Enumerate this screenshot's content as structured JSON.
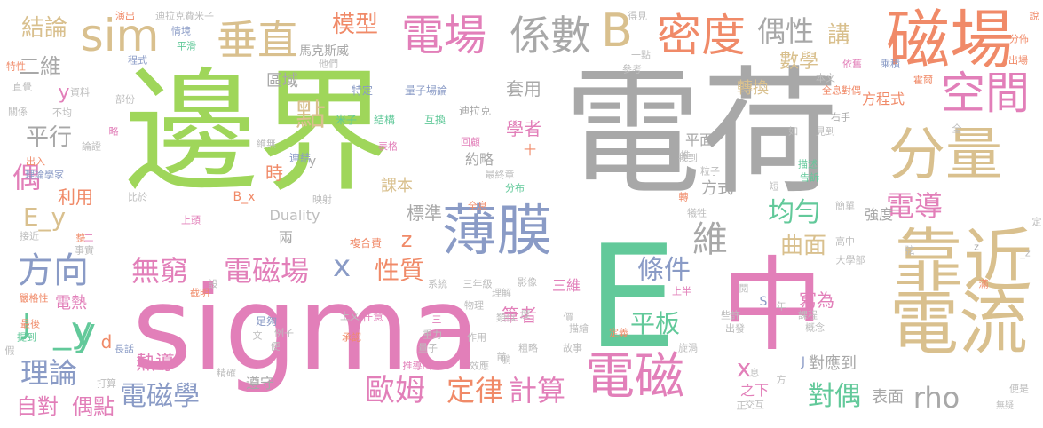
{
  "palette": {
    "green": "#9fd65a",
    "gray": "#a8a8a8",
    "pink": "#e27fb9",
    "teal": "#62c99a",
    "orange": "#f08a68",
    "tan": "#d9c08e",
    "slate": "#8a9bc6",
    "mid": "#bdbdbd"
  },
  "words": [
    {
      "text": "邊界",
      "color": "green"
    },
    {
      "text": "電荷",
      "color": "gray"
    },
    {
      "text": "sigma",
      "color": "pink"
    },
    {
      "text": "中",
      "color": "pink"
    },
    {
      "text": "E",
      "color": "teal"
    },
    {
      "text": "磁場",
      "color": "orange"
    },
    {
      "text": "靠近",
      "color": "tan"
    },
    {
      "text": "電流",
      "color": "tan"
    },
    {
      "text": "分量",
      "color": "tan"
    },
    {
      "text": "薄膜",
      "color": "slate"
    },
    {
      "text": "電磁",
      "color": "pink"
    },
    {
      "text": "電場",
      "color": "pink"
    },
    {
      "text": "係數",
      "color": "gray"
    },
    {
      "text": "B",
      "color": "tan"
    },
    {
      "text": "密度",
      "color": "orange"
    },
    {
      "text": "sim",
      "color": "tan"
    },
    {
      "text": "垂直",
      "color": "tan"
    },
    {
      "text": "方向",
      "color": "slate"
    },
    {
      "text": "無窮",
      "color": "pink"
    },
    {
      "text": "電磁場",
      "color": "pink"
    },
    {
      "text": "空間",
      "color": "pink"
    },
    {
      "text": "y",
      "color": "teal"
    },
    {
      "text": "x",
      "color": "slate"
    },
    {
      "text": "偶性",
      "color": "gray"
    },
    {
      "text": "講",
      "color": "tan"
    },
    {
      "text": "模型",
      "color": "orange"
    },
    {
      "text": "結論",
      "color": "tan"
    },
    {
      "text": "二維",
      "color": "gray"
    },
    {
      "text": "平行",
      "color": "gray"
    },
    {
      "text": "點",
      "color": "tan"
    },
    {
      "text": "偶",
      "color": "pink"
    },
    {
      "text": "E_y",
      "color": "tan"
    },
    {
      "text": "J",
      "color": "teal"
    },
    {
      "text": "_y",
      "color": "teal"
    },
    {
      "text": "理論",
      "color": "slate"
    },
    {
      "text": "自對",
      "color": "pink"
    },
    {
      "text": "偶點",
      "color": "pink"
    },
    {
      "text": "電磁學",
      "color": "slate"
    },
    {
      "text": "歐姆",
      "color": "pink"
    },
    {
      "text": "定律",
      "color": "orange"
    },
    {
      "text": "計算",
      "color": "pink"
    },
    {
      "text": "條件",
      "color": "slate"
    },
    {
      "text": "性質",
      "color": "orange"
    },
    {
      "text": "平板",
      "color": "teal"
    },
    {
      "text": "均勻",
      "color": "teal"
    },
    {
      "text": "曲面",
      "color": "tan"
    },
    {
      "text": "維",
      "color": "gray"
    },
    {
      "text": "電導",
      "color": "pink"
    },
    {
      "text": "對偶",
      "color": "teal"
    },
    {
      "text": "rho",
      "color": "gray"
    },
    {
      "text": "z",
      "color": "orange"
    },
    {
      "text": "x",
      "color": "pink"
    },
    {
      "text": "數學",
      "color": "tan"
    },
    {
      "text": "轉換",
      "color": "tan"
    },
    {
      "text": "方程式",
      "color": "orange"
    },
    {
      "text": "利用",
      "color": "orange"
    },
    {
      "text": "時",
      "color": "orange"
    },
    {
      "text": "套用",
      "color": "gray"
    },
    {
      "text": "學者",
      "color": "pink"
    },
    {
      "text": "標準",
      "color": "gray"
    },
    {
      "text": "約略",
      "color": "gray"
    },
    {
      "text": "區域",
      "color": "gray"
    },
    {
      "text": "馬克斯威",
      "color": "gray"
    },
    {
      "text": "熱導",
      "color": "pink"
    },
    {
      "text": "電熱",
      "color": "pink"
    },
    {
      "text": "筆者",
      "color": "pink"
    },
    {
      "text": "寫為",
      "color": "pink"
    },
    {
      "text": "對應到",
      "color": "gray"
    },
    {
      "text": "表面",
      "color": "gray"
    },
    {
      "text": "方式",
      "color": "gray"
    },
    {
      "text": "強度",
      "color": "gray"
    },
    {
      "text": "Duality",
      "color": "mid"
    },
    {
      "text": "課本",
      "color": "tan"
    },
    {
      "text": "平面",
      "color": "gray"
    },
    {
      "text": "三維",
      "color": "pink"
    },
    {
      "text": "兩",
      "color": "gray"
    },
    {
      "text": "遵守",
      "color": "gray"
    },
    {
      "text": "特定",
      "color": "slate"
    },
    {
      "text": "量子場論",
      "color": "slate"
    },
    {
      "text": "米子",
      "color": "teal"
    },
    {
      "text": "結構",
      "color": "teal"
    },
    {
      "text": "互換",
      "color": "teal"
    },
    {
      "text": "迪拉克",
      "color": "gray"
    },
    {
      "text": "演出",
      "color": "orange"
    },
    {
      "text": "迪拉克費米子",
      "color": "mid"
    },
    {
      "text": "得見",
      "color": "mid"
    },
    {
      "text": "說",
      "color": "orange"
    },
    {
      "text": "分佈",
      "color": "orange"
    },
    {
      "text": "出場",
      "color": "orange"
    },
    {
      "text": "霍爾",
      "color": "orange"
    },
    {
      "text": "乘積",
      "color": "slate"
    },
    {
      "text": "依舊",
      "color": "pink"
    },
    {
      "text": "本文",
      "color": "mid"
    },
    {
      "text": "全息對偶",
      "color": "orange"
    },
    {
      "text": "右手",
      "color": "gray"
    },
    {
      "text": "一如",
      "color": "mid"
    },
    {
      "text": "見到",
      "color": "mid"
    },
    {
      "text": "描述",
      "color": "teal"
    },
    {
      "text": "告訴",
      "color": "teal"
    },
    {
      "text": "大學部",
      "color": "mid"
    },
    {
      "text": "高中",
      "color": "mid"
    },
    {
      "text": "S",
      "color": "slate"
    },
    {
      "text": "年",
      "color": "mid"
    },
    {
      "text": "課程",
      "color": "mid"
    },
    {
      "text": "概念",
      "color": "mid"
    },
    {
      "text": "之下",
      "color": "pink"
    },
    {
      "text": "J",
      "color": "slate"
    },
    {
      "text": "便是",
      "color": "mid"
    },
    {
      "text": "無疑",
      "color": "mid"
    },
    {
      "text": "作用",
      "color": "mid"
    },
    {
      "text": "效應",
      "color": "mid"
    },
    {
      "text": "旋渦",
      "color": "mid"
    },
    {
      "text": "故事",
      "color": "mid"
    },
    {
      "text": "定義",
      "color": "orange"
    },
    {
      "text": "描繪",
      "color": "mid"
    },
    {
      "text": "粗略",
      "color": "mid"
    },
    {
      "text": "推導出",
      "color": "pink"
    },
    {
      "text": "重力",
      "color": "mid"
    },
    {
      "text": "類似",
      "color": "mid"
    },
    {
      "text": "理解",
      "color": "mid"
    },
    {
      "text": "任意",
      "color": "pink"
    },
    {
      "text": "承認",
      "color": "orange"
    },
    {
      "text": "足夠",
      "color": "slate"
    },
    {
      "text": "例子",
      "color": "mid"
    },
    {
      "text": "精確",
      "color": "mid"
    },
    {
      "text": "長話",
      "color": "slate"
    },
    {
      "text": "打算",
      "color": "mid"
    },
    {
      "text": "最後",
      "color": "orange"
    },
    {
      "text": "提到",
      "color": "teal"
    },
    {
      "text": "假",
      "color": "mid"
    },
    {
      "text": "嚴格性",
      "color": "orange"
    },
    {
      "text": "截明",
      "color": "orange"
    },
    {
      "text": "事實",
      "color": "mid"
    },
    {
      "text": "整",
      "color": "orange"
    },
    {
      "text": "接近",
      "color": "mid"
    },
    {
      "text": "上頭",
      "color": "pink"
    },
    {
      "text": "比於",
      "color": "mid"
    },
    {
      "text": "B_x",
      "color": "orange"
    },
    {
      "text": "映射",
      "color": "mid"
    },
    {
      "text": "複合費",
      "color": "orange"
    },
    {
      "text": "系統",
      "color": "mid"
    },
    {
      "text": "三年級",
      "color": "mid"
    },
    {
      "text": "影像",
      "color": "mid"
    },
    {
      "text": "物理",
      "color": "mid"
    },
    {
      "text": "表格",
      "color": "pink"
    },
    {
      "text": "全息",
      "color": "orange"
    },
    {
      "text": "最終章",
      "color": "mid"
    },
    {
      "text": "回顧",
      "color": "pink"
    },
    {
      "text": "分布",
      "color": "teal"
    },
    {
      "text": "理論學家",
      "color": "slate"
    },
    {
      "text": "出入",
      "color": "orange"
    },
    {
      "text": "連結",
      "color": "slate"
    },
    {
      "text": "維無",
      "color": "mid"
    },
    {
      "text": "情境",
      "color": "slate"
    },
    {
      "text": "平滑",
      "color": "teal"
    },
    {
      "text": "程式",
      "color": "slate"
    },
    {
      "text": "特性",
      "color": "orange"
    },
    {
      "text": "直覺",
      "color": "mid"
    },
    {
      "text": "資料",
      "color": "mid"
    },
    {
      "text": "部份",
      "color": "mid"
    },
    {
      "text": "不均",
      "color": "mid"
    },
    {
      "text": "關係",
      "color": "mid"
    },
    {
      "text": "論證",
      "color": "mid"
    },
    {
      "text": "他們",
      "color": "mid"
    },
    {
      "text": "參考",
      "color": "mid"
    },
    {
      "text": "簡單",
      "color": "mid"
    },
    {
      "text": "犧牲",
      "color": "mid"
    },
    {
      "text": "找到",
      "color": "mid"
    },
    {
      "text": "粒子",
      "color": "mid"
    },
    {
      "text": "上半",
      "color": "pink"
    },
    {
      "text": "上文",
      "color": "mid"
    },
    {
      "text": "些許",
      "color": "mid"
    },
    {
      "text": "出發",
      "color": "mid"
    },
    {
      "text": "交互",
      "color": "mid"
    },
    {
      "text": "弦",
      "color": "mid"
    },
    {
      "text": "滿",
      "color": "orange"
    },
    {
      "text": "全",
      "color": "mid"
    },
    {
      "text": "短",
      "color": "mid"
    },
    {
      "text": "推",
      "color": "mid"
    },
    {
      "text": "d",
      "color": "orange"
    },
    {
      "text": "y",
      "color": "pink"
    },
    {
      "text": "y",
      "color": "gray"
    },
    {
      "text": "z",
      "color": "gray"
    },
    {
      "text": "_z",
      "color": "mid"
    },
    {
      "text": "一點",
      "color": "mid"
    },
    {
      "text": "文",
      "color": "mid"
    },
    {
      "text": "便",
      "color": "mid"
    },
    {
      "text": "前",
      "color": "mid"
    },
    {
      "text": "度",
      "color": "mid"
    },
    {
      "text": "價",
      "color": "mid"
    },
    {
      "text": "三",
      "color": "pink"
    },
    {
      "text": "量子",
      "color": "mid"
    },
    {
      "text": "閱",
      "color": "mid"
    },
    {
      "text": "息",
      "color": "mid"
    },
    {
      "text": "方",
      "color": "mid"
    },
    {
      "text": "正",
      "color": "mid"
    },
    {
      "text": "躺",
      "color": "mid"
    },
    {
      "text": "設",
      "color": "mid"
    },
    {
      "text": "略",
      "color": "pink"
    },
    {
      "text": "十",
      "color": "orange"
    },
    {
      "text": "定",
      "color": "mid"
    },
    {
      "text": "轉",
      "color": "orange"
    },
    {
      "text": "二",
      "color": "pink"
    }
  ]
}
